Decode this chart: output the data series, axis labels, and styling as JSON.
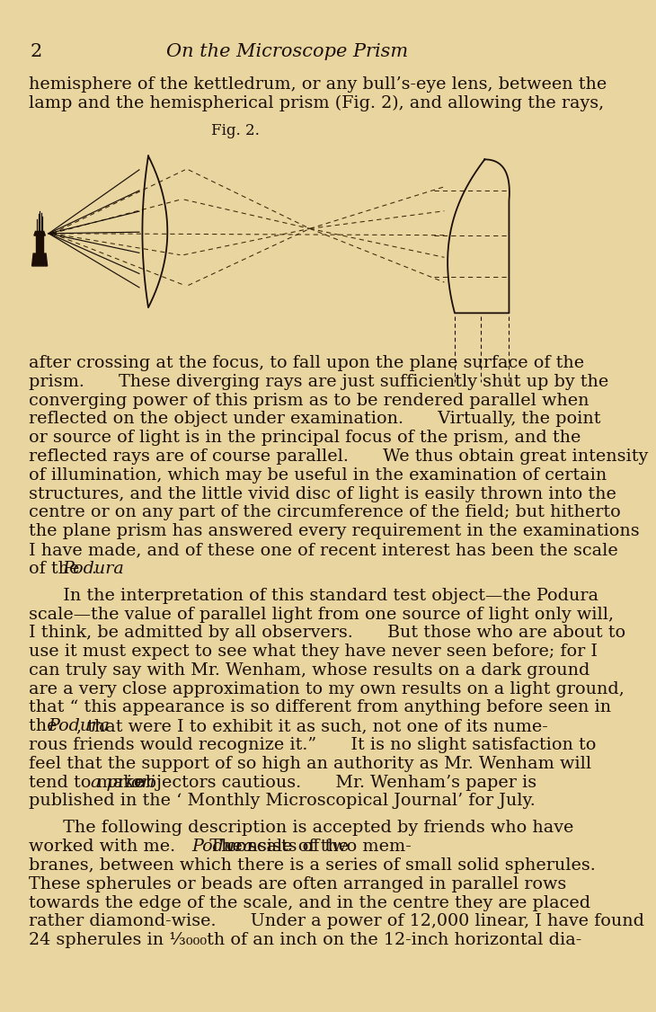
{
  "background_color": "#e8d5a0",
  "page_number": "2",
  "title": "On the Microscope Prism",
  "fig_label": "Fig. 2.",
  "text_color": "#1a0e06",
  "intro_lines": [
    "hemisphere of the kettledrum, or any bull’s-eye lens, between the",
    "lamp and the hemispherical prism (Fig. 2), and allowing the rays,"
  ],
  "lines_para1": [
    "after crossing at the focus, to fall upon the plane surface of the",
    "prism.  These diverging rays are just sufficiently shut up by the",
    "converging power of this prism as to be rendered parallel when",
    "reflected on the object under examination.  Virtually, the point",
    "or source of light is in the principal focus of the prism, and the",
    "reflected rays are of course parallel.  We thus obtain great intensity",
    "of illumination, which may be useful in the examination of certain",
    "structures, and the little vivid disc of light is easily thrown into the",
    "centre or on any part of the circumference of the field; but hitherto",
    "the plane prism has answered every requirement in the examinations",
    "I have made, and of these one of recent interest has been the scale",
    "of the @@Podura@@."
  ],
  "lines_para2": [
    "  In the interpretation of this standard test object—the Podura",
    "scale—the value of parallel light from one source of light only will,",
    "I think, be admitted by all observers.  But those who are about to",
    "use it must expect to see what they have never seen before; for I",
    "can truly say with Mr. Wenham, whose results on a dark ground",
    "are a very close approximation to my own results on a light ground,",
    "that “ this appearance is so different from anything before seen in",
    "the @@Podura@@, that were I to exhibit it as such, not one of its nume-",
    "rous friends would recognize it.”  It is no slight satisfaction to",
    "feel that the support of so high an authority as Mr. Wenham will",
    "tend to make @@a priori@@ objectors cautious.  Mr. Wenham’s paper is",
    "published in the ‘ Monthly Microscopical Journal’ for July."
  ],
  "lines_para3": [
    "  The following description is accepted by friends who have",
    "worked with me.  The scale of the @@Podura@@ consists of two mem-",
    "branes, between which there is a series of small solid spherules.",
    "These spherules or beads are often arranged in parallel rows",
    "towards the edge of the scale, and in the centre they are placed",
    "rather diamond-wise.  Under a power of 12,000 linear, I have found",
    "24 spherules in ⅓₀₀₀th of an inch on the 12-inch horizontal dia-"
  ]
}
